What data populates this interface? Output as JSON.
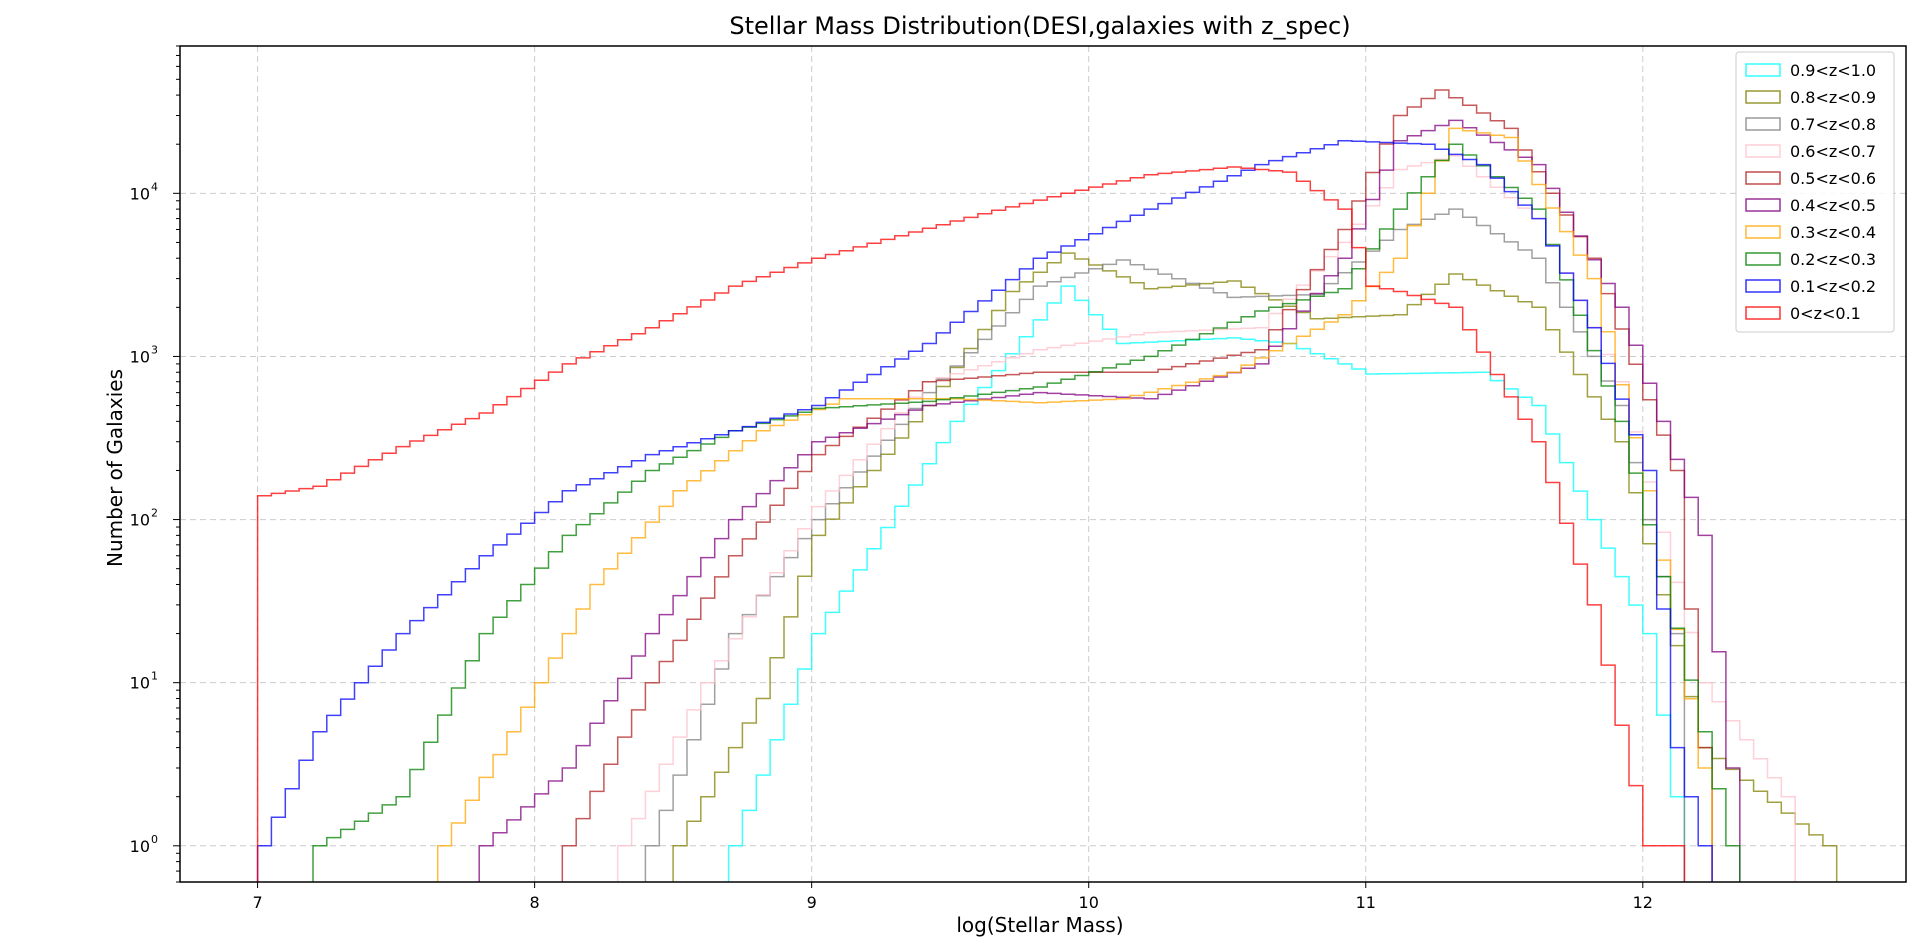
{
  "chart_data": {
    "type": "histogram-step",
    "title": "Stellar Mass Distribution(DESI,galaxies with z_spec)",
    "xlabel": "log(Stellar Mass)",
    "ylabel": "Number of Galaxies",
    "xlim": [
      6.72,
      12.95
    ],
    "ylim": [
      0.6,
      80000
    ],
    "yscale": "log",
    "grid": true,
    "legend_position": "upper-right",
    "xticks": [
      "7",
      "8",
      "9",
      "10",
      "11",
      "12"
    ],
    "xtick_values": [
      7,
      8,
      9,
      10,
      11,
      12
    ],
    "yticks": [
      "10",
      "10",
      "10",
      "10",
      "10"
    ],
    "ytick_exponents": [
      "0",
      "1",
      "2",
      "3",
      "4"
    ],
    "ytick_values": [
      1,
      10,
      100,
      1000,
      10000
    ],
    "series": [
      {
        "name": "0.9<z<1.0",
        "color": "#00ffff",
        "x": [
          8.7,
          9.0,
          9.5,
          9.9,
          10.1,
          10.5,
          10.7,
          11.0,
          11.4,
          11.6,
          11.8,
          12.0,
          12.1
        ],
        "y": [
          1,
          20,
          400,
          2700,
          1200,
          1300,
          1200,
          780,
          800,
          500,
          100,
          20,
          2
        ]
      },
      {
        "name": "0.8<z<0.9",
        "color": "#808000",
        "x": [
          8.5,
          8.8,
          9.0,
          9.4,
          9.7,
          9.9,
          10.2,
          10.5,
          10.8,
          11.1,
          11.3,
          11.6,
          11.9,
          12.2,
          12.65
        ],
        "y": [
          1,
          8,
          80,
          500,
          2500,
          4300,
          2600,
          2900,
          1700,
          1800,
          3200,
          2000,
          300,
          4,
          1
        ]
      },
      {
        "name": "0.7<z<0.8",
        "color": "#808080",
        "x": [
          8.4,
          8.7,
          9.0,
          9.4,
          9.8,
          10.1,
          10.5,
          10.8,
          11.1,
          11.3,
          11.6,
          11.9,
          12.1
        ],
        "y": [
          1,
          20,
          100,
          600,
          2700,
          3900,
          2300,
          2400,
          6000,
          8000,
          4000,
          500,
          20
        ]
      },
      {
        "name": "0.6<z<0.7",
        "color": "#ffc0cb",
        "x": [
          8.3,
          8.6,
          9.0,
          9.4,
          9.8,
          10.2,
          10.6,
          10.9,
          11.1,
          11.3,
          11.6,
          11.9,
          12.2,
          12.5
        ],
        "y": [
          1,
          10,
          120,
          700,
          1100,
          1400,
          1500,
          5000,
          14000,
          17000,
          7000,
          700,
          10,
          2
        ]
      },
      {
        "name": "0.5<z<0.6",
        "color": "#b22222",
        "x": [
          8.1,
          8.4,
          8.7,
          9.0,
          9.4,
          9.8,
          10.2,
          10.6,
          10.9,
          11.1,
          11.25,
          11.5,
          11.8,
          12.1,
          12.2
        ],
        "y": [
          1,
          10,
          60,
          250,
          700,
          800,
          800,
          1100,
          6000,
          30000,
          43000,
          25000,
          4000,
          200,
          4
        ]
      },
      {
        "name": "0.4<z<0.5",
        "color": "#800080",
        "x": [
          7.8,
          8.1,
          8.4,
          8.7,
          9.0,
          9.4,
          9.8,
          10.2,
          10.6,
          10.9,
          11.1,
          11.3,
          11.6,
          11.9,
          12.2,
          12.3
        ],
        "y": [
          1,
          3,
          20,
          100,
          300,
          500,
          600,
          550,
          900,
          4000,
          21000,
          28000,
          15000,
          2000,
          80,
          3
        ]
      },
      {
        "name": "0.3<z<0.4",
        "color": "#ffa500",
        "x": [
          7.65,
          7.9,
          8.2,
          8.5,
          8.8,
          9.1,
          9.5,
          9.8,
          10.1,
          10.5,
          10.9,
          11.1,
          11.3,
          11.5,
          11.8,
          12.0,
          12.2
        ],
        "y": [
          1,
          5,
          40,
          150,
          350,
          550,
          550,
          520,
          550,
          800,
          1800,
          4000,
          25000,
          22000,
          3000,
          150,
          3
        ]
      },
      {
        "name": "0.2<z<0.3",
        "color": "#008000",
        "x": [
          7.2,
          7.5,
          7.8,
          8.1,
          8.4,
          8.7,
          9.0,
          9.4,
          9.8,
          10.2,
          10.6,
          10.9,
          11.1,
          11.3,
          11.6,
          11.9,
          12.2,
          12.3
        ],
        "y": [
          1,
          2,
          20,
          80,
          200,
          350,
          480,
          530,
          650,
          1000,
          1900,
          2600,
          8000,
          20000,
          8000,
          400,
          5,
          1
        ]
      },
      {
        "name": "0.1<z<0.2",
        "color": "#0000ff",
        "x": [
          7.0,
          7.2,
          7.5,
          7.8,
          8.1,
          8.4,
          8.7,
          9.0,
          9.4,
          9.8,
          10.2,
          10.6,
          10.9,
          11.2,
          11.4,
          11.6,
          11.8,
          12.0,
          12.1,
          12.2
        ],
        "y": [
          1,
          5,
          20,
          60,
          150,
          250,
          350,
          500,
          1200,
          4000,
          8000,
          15000,
          21000,
          20000,
          15000,
          7000,
          1500,
          200,
          4,
          1
        ]
      },
      {
        "name": "0<z<0.1",
        "color": "#ff0000",
        "x": [
          7.0,
          7.2,
          7.5,
          7.8,
          8.1,
          8.4,
          8.7,
          9.0,
          9.3,
          9.6,
          9.9,
          10.2,
          10.5,
          10.7,
          10.9,
          11.0,
          11.1,
          11.3,
          11.6,
          11.8,
          12.0,
          12.1
        ],
        "y": [
          140,
          160,
          280,
          450,
          900,
          1500,
          2700,
          4000,
          5500,
          7500,
          10000,
          13000,
          14500,
          13500,
          8000,
          2700,
          2500,
          2000,
          300,
          30,
          1,
          1
        ]
      }
    ]
  }
}
